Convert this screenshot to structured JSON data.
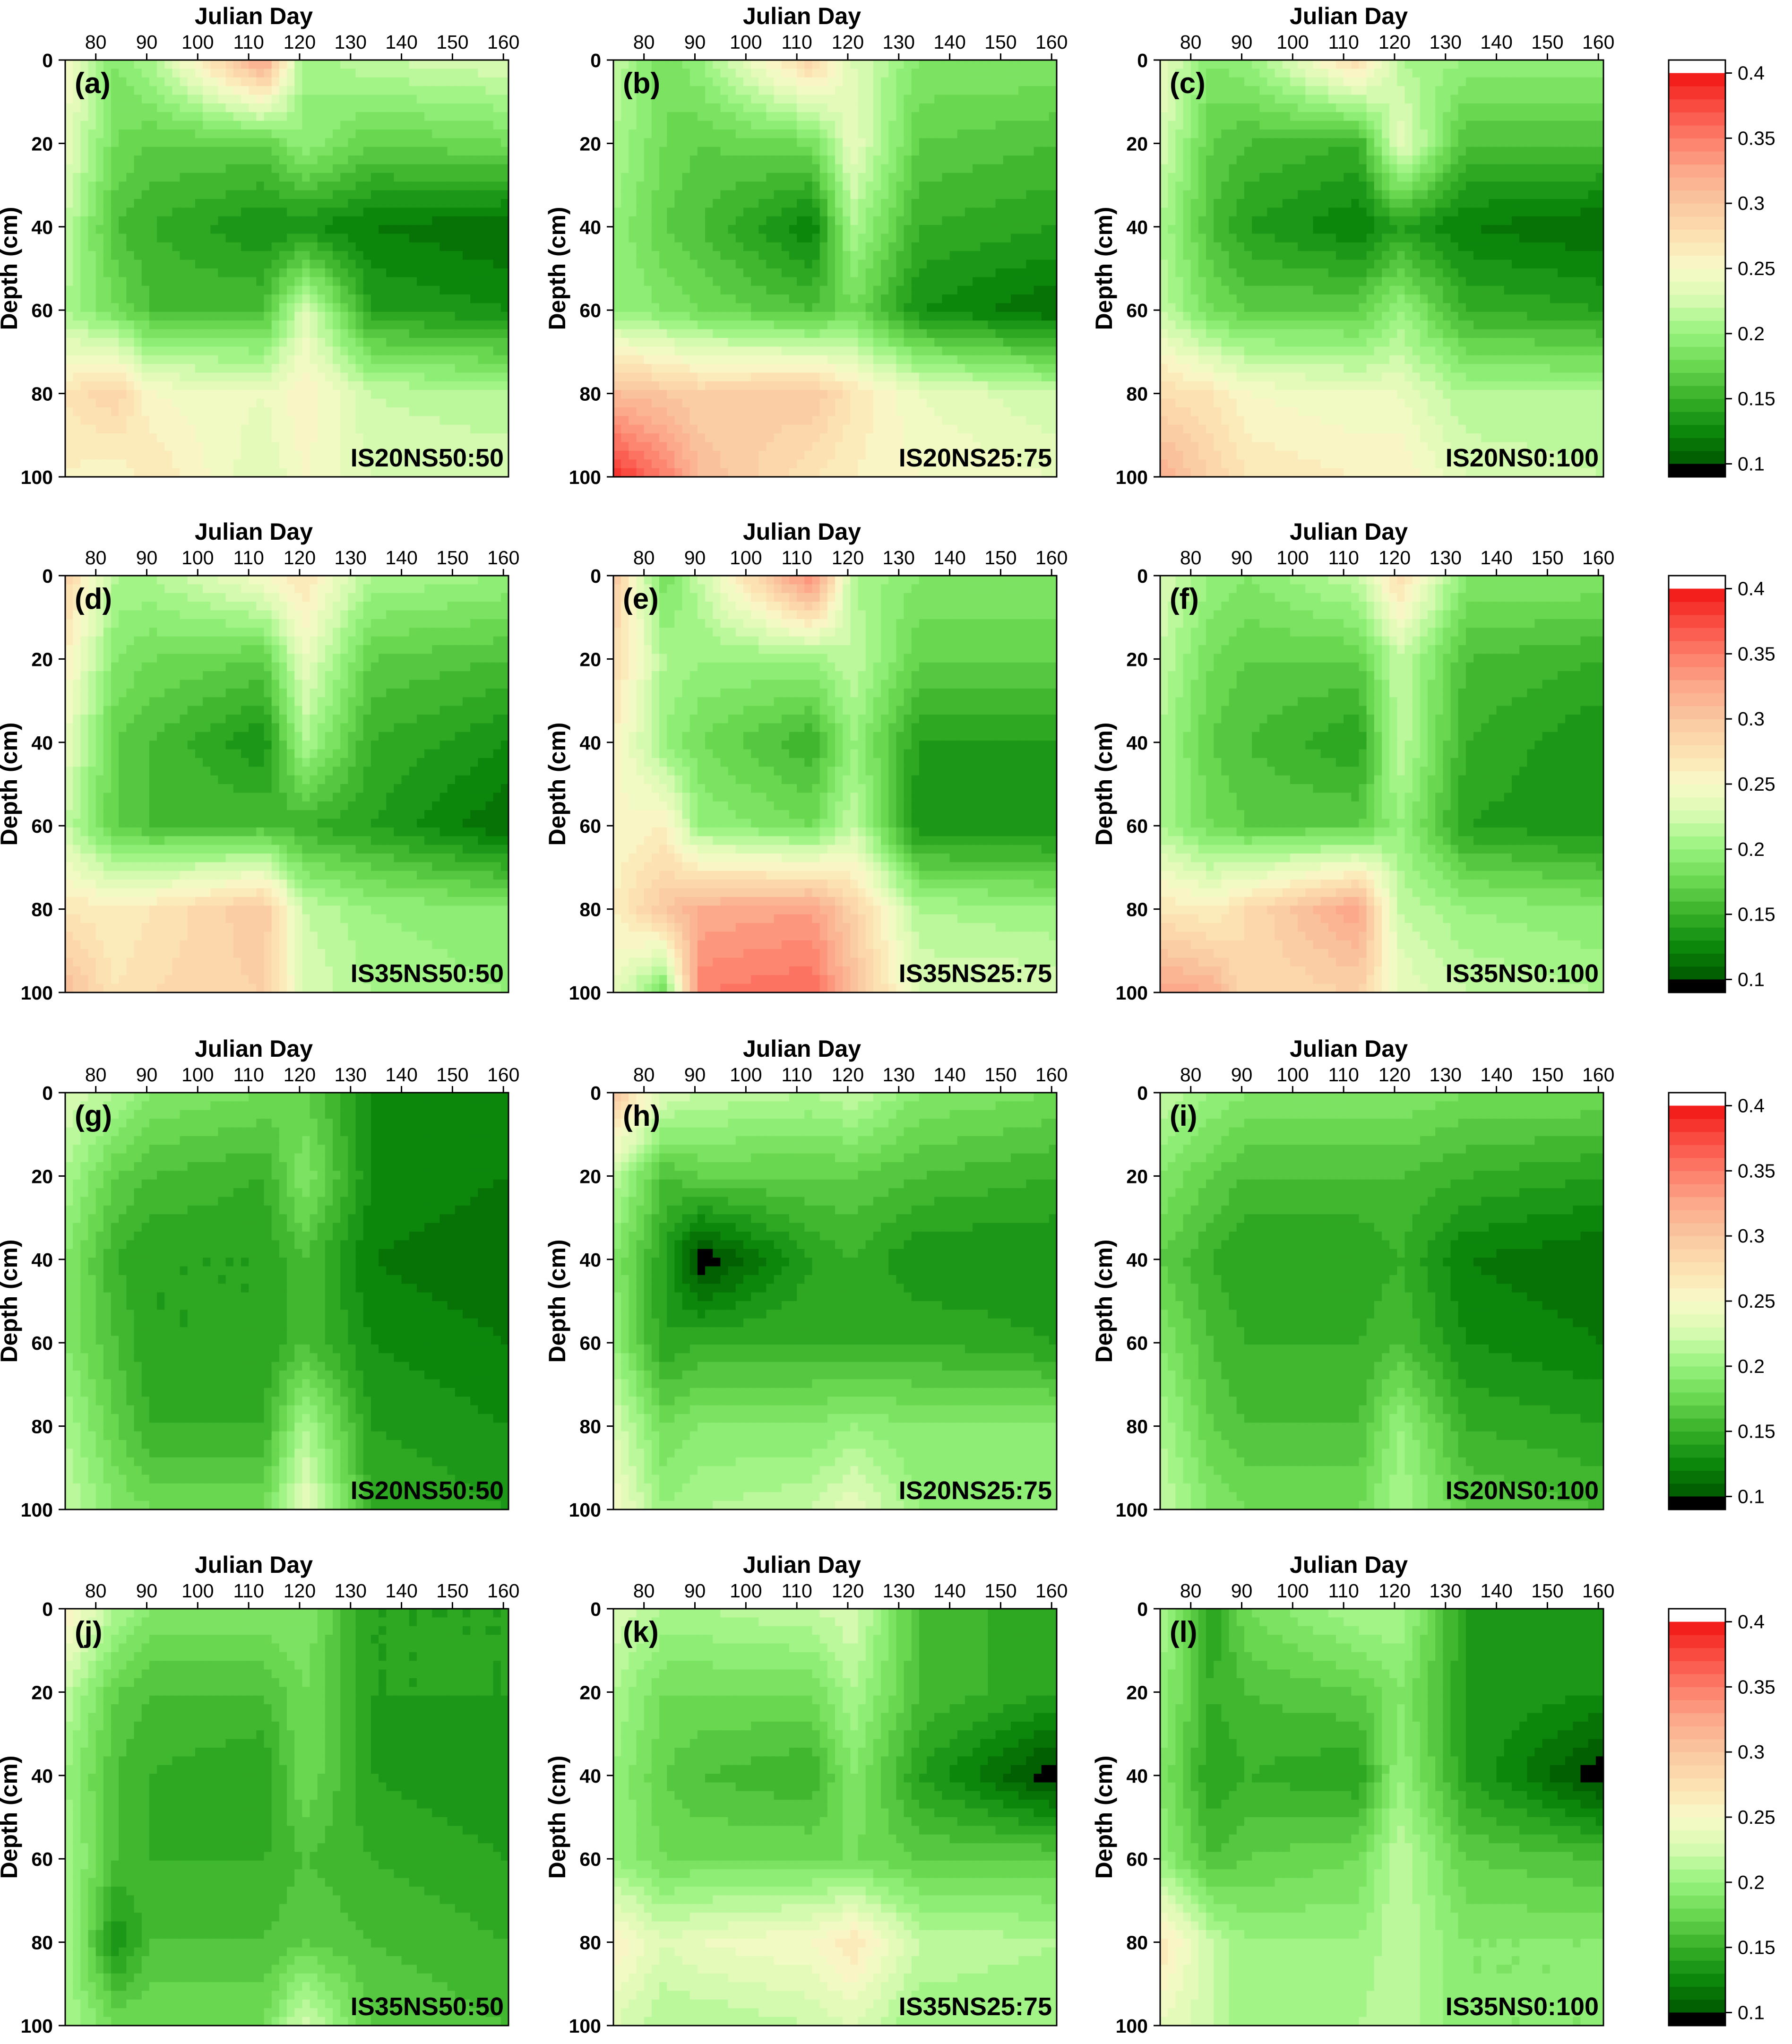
{
  "chart_data": {
    "type": "heatmap",
    "x_label": "Julian Day",
    "y_label": "Depth (cm)",
    "x_ticks": [
      80,
      90,
      100,
      110,
      120,
      130,
      140,
      150,
      160
    ],
    "y_ticks": [
      0,
      20,
      40,
      60,
      80,
      100
    ],
    "xlim": [
      74,
      161
    ],
    "ylim": [
      0,
      100
    ],
    "y_reversed": true,
    "colorbar": {
      "ticks": [
        "0.4",
        "0.35",
        "0.3",
        "0.25",
        "0.2",
        "0.15",
        "0.1"
      ],
      "range": [
        0.09,
        0.41
      ],
      "low_color": "#000000",
      "high_color": "#ffffff"
    },
    "grid_days": [
      74,
      84,
      91,
      113,
      121,
      134,
      161
    ],
    "grid_depths": [
      0,
      20,
      40,
      60,
      80,
      100
    ],
    "panels": [
      {
        "letter": "(a)",
        "label": "IS20NS50:50",
        "values": [
          [
            0.25,
            0.19,
            0.21,
            0.33,
            0.2,
            0.22,
            0.23
          ],
          [
            0.24,
            0.18,
            0.17,
            0.17,
            0.2,
            0.17,
            0.18
          ],
          [
            0.22,
            0.16,
            0.15,
            0.13,
            0.13,
            0.12,
            0.11
          ],
          [
            0.21,
            0.18,
            0.16,
            0.16,
            0.23,
            0.14,
            0.13
          ],
          [
            0.27,
            0.29,
            0.25,
            0.24,
            0.26,
            0.22,
            0.21
          ],
          [
            0.26,
            0.25,
            0.27,
            0.23,
            0.25,
            0.23,
            0.23
          ]
        ]
      },
      {
        "letter": "(b)",
        "label": "IS20NS25:75",
        "values": [
          [
            0.22,
            0.18,
            0.2,
            0.29,
            0.23,
            0.19,
            0.19
          ],
          [
            0.21,
            0.18,
            0.17,
            0.18,
            0.24,
            0.17,
            0.16
          ],
          [
            0.2,
            0.17,
            0.16,
            0.12,
            0.21,
            0.15,
            0.14
          ],
          [
            0.2,
            0.19,
            0.18,
            0.16,
            0.18,
            0.13,
            0.11
          ],
          [
            0.31,
            0.3,
            0.29,
            0.3,
            0.27,
            0.24,
            0.22
          ],
          [
            0.39,
            0.35,
            0.31,
            0.27,
            0.26,
            0.25,
            0.24
          ]
        ]
      },
      {
        "letter": "(c)",
        "label": "IS20NS0:100",
        "values": [
          [
            0.24,
            0.19,
            0.2,
            0.28,
            0.21,
            0.2,
            0.2
          ],
          [
            0.23,
            0.17,
            0.16,
            0.15,
            0.24,
            0.16,
            0.16
          ],
          [
            0.21,
            0.16,
            0.14,
            0.12,
            0.14,
            0.12,
            0.11
          ],
          [
            0.22,
            0.18,
            0.17,
            0.17,
            0.2,
            0.15,
            0.14
          ],
          [
            0.28,
            0.27,
            0.25,
            0.24,
            0.24,
            0.21,
            0.21
          ],
          [
            0.32,
            0.29,
            0.27,
            0.26,
            0.26,
            0.23,
            0.22
          ]
        ]
      },
      {
        "letter": "(d)",
        "label": "IS35NS50:50",
        "values": [
          [
            0.29,
            0.21,
            0.21,
            0.25,
            0.27,
            0.21,
            0.2
          ],
          [
            0.26,
            0.19,
            0.18,
            0.17,
            0.24,
            0.17,
            0.16
          ],
          [
            0.24,
            0.17,
            0.16,
            0.13,
            0.21,
            0.15,
            0.13
          ],
          [
            0.22,
            0.17,
            0.16,
            0.16,
            0.15,
            0.14,
            0.11
          ],
          [
            0.27,
            0.26,
            0.27,
            0.3,
            0.22,
            0.2,
            0.19
          ],
          [
            0.31,
            0.27,
            0.28,
            0.29,
            0.23,
            0.21,
            0.2
          ]
        ]
      },
      {
        "letter": "(e)",
        "label": "IS35NS25:75",
        "values": [
          [
            0.3,
            0.18,
            0.22,
            0.35,
            0.21,
            0.19,
            0.19
          ],
          [
            0.28,
            0.21,
            0.2,
            0.2,
            0.22,
            0.17,
            0.17
          ],
          [
            0.26,
            0.2,
            0.18,
            0.15,
            0.2,
            0.14,
            0.14
          ],
          [
            0.25,
            0.26,
            0.2,
            0.18,
            0.22,
            0.13,
            0.13
          ],
          [
            0.26,
            0.3,
            0.32,
            0.33,
            0.29,
            0.21,
            0.2
          ],
          [
            0.24,
            0.18,
            0.35,
            0.36,
            0.31,
            0.23,
            0.23
          ]
        ]
      },
      {
        "letter": "(f)",
        "label": "IS35NS0:100",
        "values": [
          [
            0.23,
            0.2,
            0.19,
            0.22,
            0.28,
            0.19,
            0.19
          ],
          [
            0.22,
            0.18,
            0.17,
            0.17,
            0.22,
            0.16,
            0.15
          ],
          [
            0.21,
            0.17,
            0.16,
            0.14,
            0.22,
            0.15,
            0.13
          ],
          [
            0.21,
            0.18,
            0.17,
            0.17,
            0.2,
            0.14,
            0.13
          ],
          [
            0.27,
            0.26,
            0.28,
            0.33,
            0.22,
            0.2,
            0.19
          ],
          [
            0.33,
            0.32,
            0.28,
            0.29,
            0.24,
            0.22,
            0.21
          ]
        ]
      },
      {
        "letter": "(g)",
        "label": "IS20NS50:50",
        "values": [
          [
            0.23,
            0.21,
            0.19,
            0.18,
            0.17,
            0.13,
            0.12
          ],
          [
            0.21,
            0.17,
            0.16,
            0.15,
            0.19,
            0.13,
            0.12
          ],
          [
            0.19,
            0.15,
            0.14,
            0.14,
            0.16,
            0.12,
            0.11
          ],
          [
            0.19,
            0.16,
            0.14,
            0.14,
            0.16,
            0.13,
            0.12
          ],
          [
            0.21,
            0.17,
            0.15,
            0.15,
            0.21,
            0.14,
            0.13
          ],
          [
            0.22,
            0.19,
            0.18,
            0.18,
            0.24,
            0.15,
            0.14
          ]
        ]
      },
      {
        "letter": "(h)",
        "label": "IS20NS25:75",
        "values": [
          [
            0.3,
            0.23,
            0.22,
            0.21,
            0.22,
            0.19,
            0.18
          ],
          [
            0.22,
            0.16,
            0.17,
            0.17,
            0.17,
            0.16,
            0.15
          ],
          [
            0.19,
            0.14,
            0.09,
            0.14,
            0.15,
            0.13,
            0.13
          ],
          [
            0.2,
            0.14,
            0.15,
            0.15,
            0.15,
            0.15,
            0.14
          ],
          [
            0.23,
            0.18,
            0.19,
            0.19,
            0.2,
            0.19,
            0.19
          ],
          [
            0.25,
            0.2,
            0.21,
            0.22,
            0.24,
            0.2,
            0.2
          ]
        ]
      },
      {
        "letter": "(i)",
        "label": "IS20NS0:100",
        "values": [
          [
            0.22,
            0.2,
            0.19,
            0.19,
            0.19,
            0.18,
            0.18
          ],
          [
            0.19,
            0.17,
            0.16,
            0.16,
            0.16,
            0.15,
            0.14
          ],
          [
            0.17,
            0.15,
            0.14,
            0.14,
            0.15,
            0.12,
            0.11
          ],
          [
            0.19,
            0.16,
            0.15,
            0.15,
            0.16,
            0.13,
            0.12
          ],
          [
            0.21,
            0.17,
            0.16,
            0.16,
            0.2,
            0.15,
            0.14
          ],
          [
            0.22,
            0.19,
            0.18,
            0.18,
            0.21,
            0.17,
            0.16
          ]
        ]
      },
      {
        "letter": "(j)",
        "label": "IS35NS50:50",
        "values": [
          [
            0.26,
            0.21,
            0.19,
            0.19,
            0.19,
            0.14,
            0.14
          ],
          [
            0.22,
            0.17,
            0.16,
            0.16,
            0.18,
            0.14,
            0.14
          ],
          [
            0.2,
            0.16,
            0.15,
            0.14,
            0.18,
            0.14,
            0.13
          ],
          [
            0.21,
            0.16,
            0.15,
            0.15,
            0.16,
            0.15,
            0.14
          ],
          [
            0.21,
            0.13,
            0.16,
            0.16,
            0.17,
            0.16,
            0.15
          ],
          [
            0.21,
            0.18,
            0.18,
            0.18,
            0.23,
            0.17,
            0.16
          ]
        ]
      },
      {
        "letter": "(k)",
        "label": "IS35NS25:75",
        "values": [
          [
            0.23,
            0.21,
            0.21,
            0.22,
            0.23,
            0.16,
            0.14
          ],
          [
            0.21,
            0.18,
            0.18,
            0.18,
            0.21,
            0.16,
            0.14
          ],
          [
            0.2,
            0.17,
            0.16,
            0.15,
            0.19,
            0.14,
            0.09
          ],
          [
            0.2,
            0.18,
            0.18,
            0.18,
            0.18,
            0.17,
            0.17
          ],
          [
            0.26,
            0.23,
            0.24,
            0.25,
            0.27,
            0.22,
            0.21
          ],
          [
            0.23,
            0.21,
            0.21,
            0.22,
            0.23,
            0.2,
            0.2
          ]
        ]
      },
      {
        "letter": "(l)",
        "label": "IS35NS0:100",
        "values": [
          [
            0.21,
            0.14,
            0.18,
            0.21,
            0.21,
            0.14,
            0.14
          ],
          [
            0.2,
            0.15,
            0.16,
            0.17,
            0.19,
            0.14,
            0.13
          ],
          [
            0.19,
            0.14,
            0.15,
            0.14,
            0.2,
            0.14,
            0.09
          ],
          [
            0.2,
            0.16,
            0.17,
            0.18,
            0.22,
            0.17,
            0.16
          ],
          [
            0.27,
            0.22,
            0.2,
            0.2,
            0.22,
            0.19,
            0.19
          ],
          [
            0.24,
            0.22,
            0.2,
            0.21,
            0.22,
            0.19,
            0.19
          ]
        ]
      }
    ]
  }
}
